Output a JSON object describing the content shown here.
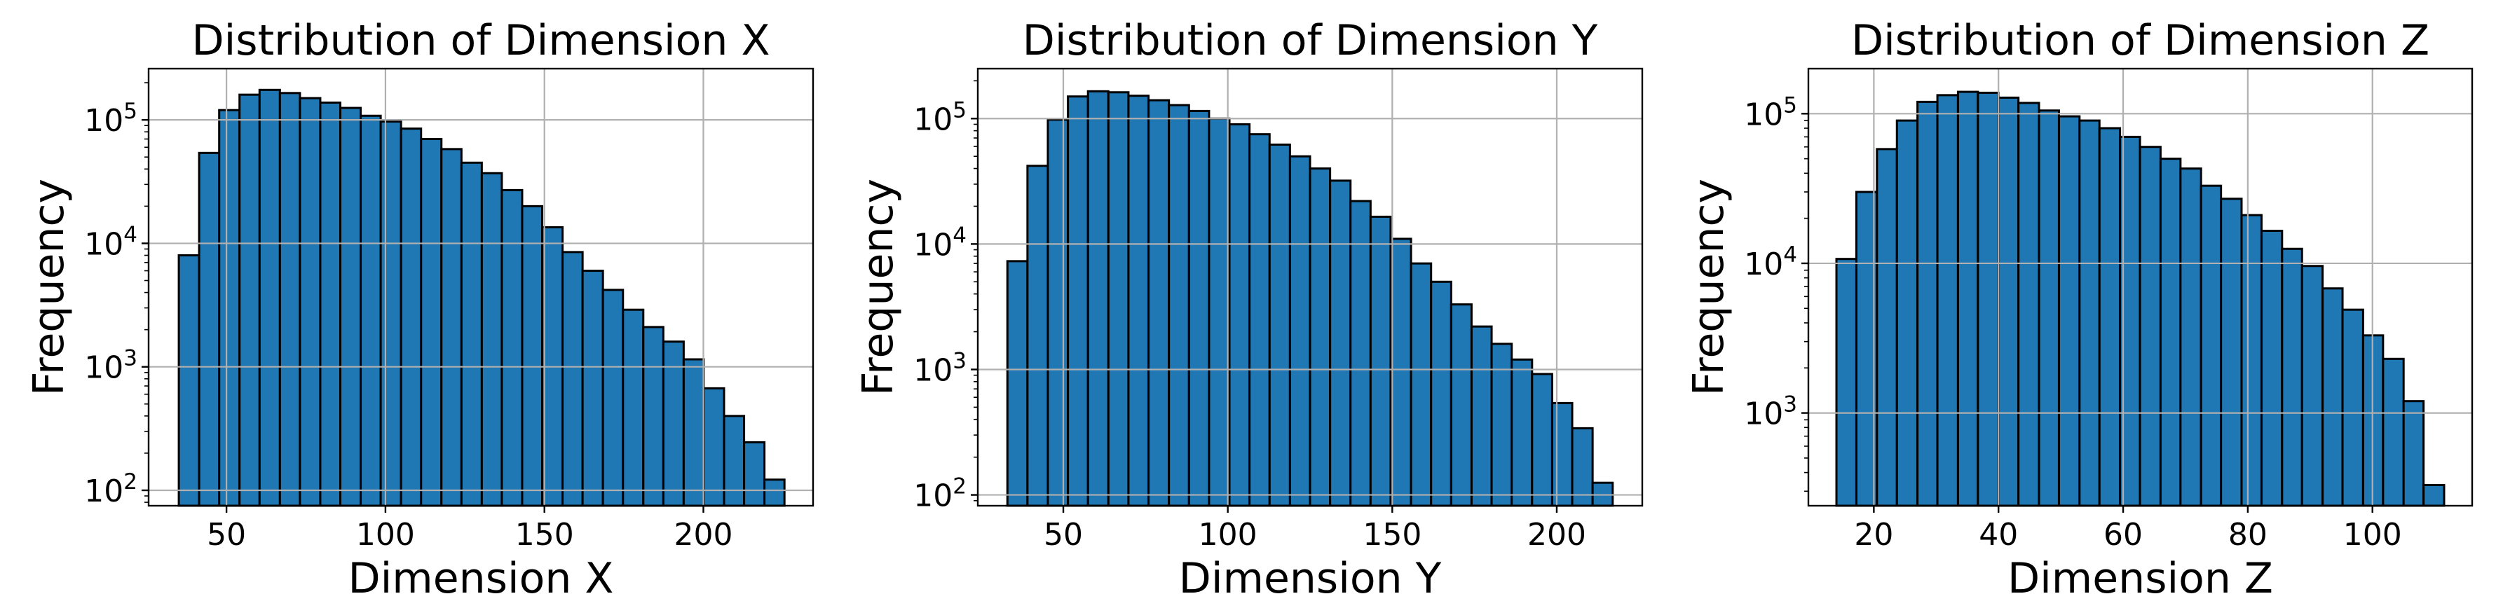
{
  "chart_data": [
    {
      "type": "bar",
      "title": "Distribution of Dimension X",
      "xlabel": "Dimension X",
      "ylabel": "Frequency",
      "yscale": "log",
      "grid": true,
      "bar_color": "#1f77b4",
      "edge_color": "#000000",
      "xlim": [
        25.5,
        234.5
      ],
      "ylim": [
        75,
        260000
      ],
      "xticks": [
        50,
        100,
        150,
        200
      ],
      "yticks": [
        100,
        1000,
        10000,
        100000
      ],
      "ytick_labels": [
        {
          "base": "10",
          "exp": "2"
        },
        {
          "base": "10",
          "exp": "3"
        },
        {
          "base": "10",
          "exp": "4"
        },
        {
          "base": "10",
          "exp": "5"
        }
      ],
      "bin_edges": [
        35,
        41.4,
        47.7,
        54.1,
        60.4,
        66.8,
        73.1,
        79.5,
        85.8,
        92.2,
        98.5,
        104.9,
        111.2,
        117.6,
        123.9,
        130.3,
        136.6,
        143,
        149.3,
        155.7,
        162,
        168.4,
        174.7,
        181.1,
        187.4,
        193.8,
        200.1,
        206.5,
        212.8,
        219.2,
        225.5
      ],
      "values": [
        8000,
        54000,
        120000,
        160000,
        175000,
        165000,
        150000,
        138000,
        125000,
        108000,
        97000,
        85000,
        70000,
        58000,
        45000,
        37000,
        27000,
        20000,
        13500,
        8500,
        6000,
        4200,
        2900,
        2100,
        1600,
        1150,
        670,
        400,
        245,
        122
      ]
    },
    {
      "type": "bar",
      "title": "Distribution of Dimension Y",
      "xlabel": "Dimension Y",
      "ylabel": "Frequency",
      "yscale": "log",
      "grid": true,
      "bar_color": "#1f77b4",
      "edge_color": "#000000",
      "xlim": [
        24,
        226
      ],
      "ylim": [
        82,
        250000
      ],
      "xticks": [
        50,
        100,
        150,
        200
      ],
      "yticks": [
        100,
        1000,
        10000,
        100000
      ],
      "ytick_labels": [
        {
          "base": "10",
          "exp": "2"
        },
        {
          "base": "10",
          "exp": "3"
        },
        {
          "base": "10",
          "exp": "4"
        },
        {
          "base": "10",
          "exp": "5"
        }
      ],
      "bin_edges": [
        33,
        39.1,
        45.3,
        51.4,
        57.5,
        63.7,
        69.8,
        75.9,
        82.1,
        88.2,
        94.3,
        100.5,
        106.6,
        112.7,
        118.9,
        125,
        131.1,
        137.3,
        143.4,
        149.5,
        155.7,
        161.8,
        167.9,
        174.1,
        180.2,
        186.3,
        192.5,
        198.6,
        204.7,
        210.9,
        217
      ],
      "values": [
        7300,
        42000,
        98000,
        150000,
        165000,
        162000,
        152000,
        140000,
        128000,
        115000,
        100000,
        90000,
        75000,
        62000,
        50000,
        40000,
        32000,
        22000,
        16500,
        11000,
        7000,
        5000,
        3300,
        2200,
        1600,
        1200,
        920,
        540,
        340,
        125
      ]
    },
    {
      "type": "bar",
      "title": "Distribution of Dimension Z",
      "xlabel": "Dimension Z",
      "ylabel": "Frequency",
      "yscale": "log",
      "grid": true,
      "bar_color": "#1f77b4",
      "edge_color": "#000000",
      "xlim": [
        9.5,
        116
      ],
      "ylim": [
        240,
        200000
      ],
      "xticks": [
        20,
        40,
        60,
        80,
        100
      ],
      "yticks": [
        1000,
        10000,
        100000
      ],
      "ytick_labels": [
        {
          "base": "10",
          "exp": "3"
        },
        {
          "base": "10",
          "exp": "4"
        },
        {
          "base": "10",
          "exp": "5"
        }
      ],
      "bin_edges": [
        14,
        17.2,
        20.5,
        23.7,
        27,
        30.2,
        33.5,
        36.7,
        40,
        43.2,
        46.5,
        49.7,
        53,
        56.2,
        59.5,
        62.7,
        66,
        69.2,
        72.5,
        75.7,
        79,
        82.2,
        85.5,
        88.7,
        92,
        95.2,
        98.5,
        101.7,
        105,
        108.2,
        111.5
      ],
      "values": [
        10700,
        30000,
        58000,
        90000,
        120000,
        133000,
        140000,
        138000,
        128000,
        118000,
        105000,
        96000,
        90000,
        80000,
        70000,
        60000,
        50000,
        43000,
        33000,
        27000,
        21000,
        16500,
        12500,
        9600,
        6800,
        4900,
        3300,
        2300,
        1200,
        330
      ]
    }
  ]
}
